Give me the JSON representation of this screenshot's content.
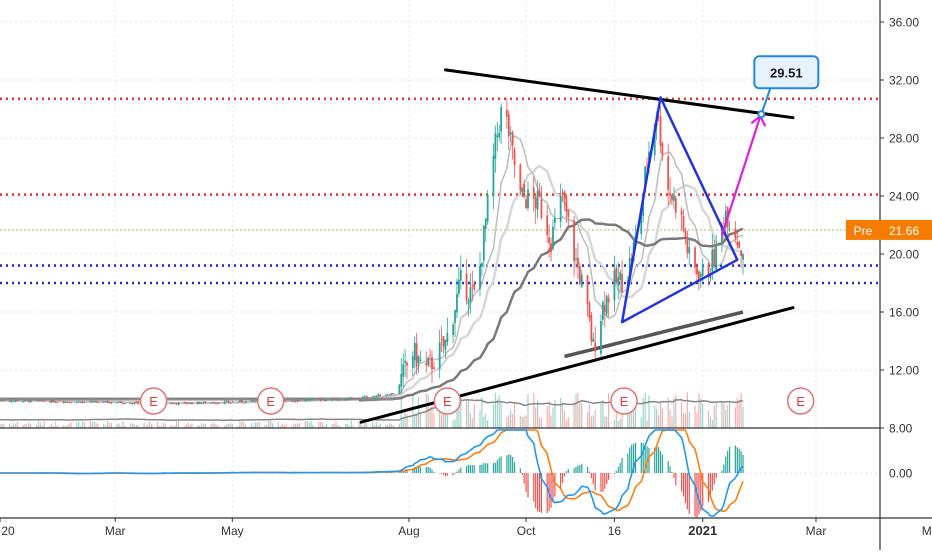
{
  "chart_data": {
    "type": "candlestick",
    "symbol_price_label": "21.66",
    "premarket_label": "Pre",
    "price_axis": {
      "ylim": [
        8,
        37
      ],
      "ticks": [
        "8.00",
        "12.00",
        "16.00",
        "20.00",
        "24.00",
        "28.00",
        "32.00",
        "36.00"
      ]
    },
    "macd_axis": {
      "ticks": [
        "0.00"
      ]
    },
    "time_axis": {
      "tick_labels": [
        "20",
        "Mar",
        "May",
        "Aug",
        "Oct",
        "16",
        "2021",
        "Mar",
        "May"
      ]
    },
    "horizontal_levels": [
      {
        "value": 30.7,
        "color": "#e53935",
        "style": "dotted"
      },
      {
        "value": 24.1,
        "color": "#e53935",
        "style": "dotted"
      },
      {
        "value": 21.66,
        "color": "#c8b96a",
        "style": "dotted"
      },
      {
        "value": 19.2,
        "color": "#2230c8",
        "style": "dotted"
      },
      {
        "value": 18.0,
        "color": "#2230c8",
        "style": "dotted"
      }
    ],
    "trendlines": [
      {
        "name": "upper",
        "from": [
          "2020-08-20",
          32.7
        ],
        "to": [
          "2021-02-17",
          29.4
        ],
        "color": "#000000"
      },
      {
        "name": "lower",
        "from": [
          "2020-07-07",
          8.4
        ],
        "to": [
          "2021-02-17",
          16.3
        ],
        "color": "#000000"
      }
    ],
    "triangle": {
      "points": [
        [
          "2020-12-10",
          30.8
        ],
        [
          "2021-01-19",
          19.6
        ],
        [
          "2020-11-20",
          15.3
        ]
      ],
      "color": "#2233dd"
    },
    "projection": {
      "from": [
        "2021-01-11",
        21.3
      ],
      "to": [
        "2021-01-31",
        29.5
      ],
      "color": "#e020e0",
      "label": "29.51"
    },
    "earnings_markers": {
      "label": "E",
      "dates": [
        "2020-03-21",
        "2020-05-21",
        "2020-08-21",
        "2020-11-21",
        "2021-02-21"
      ]
    },
    "colors": {
      "up": "#26a69a",
      "down": "#ef5350",
      "sma_dark": "#666666",
      "sma_light": "#c7c7c7",
      "macd": "#2196f3",
      "signal": "#ff7f0e"
    }
  }
}
